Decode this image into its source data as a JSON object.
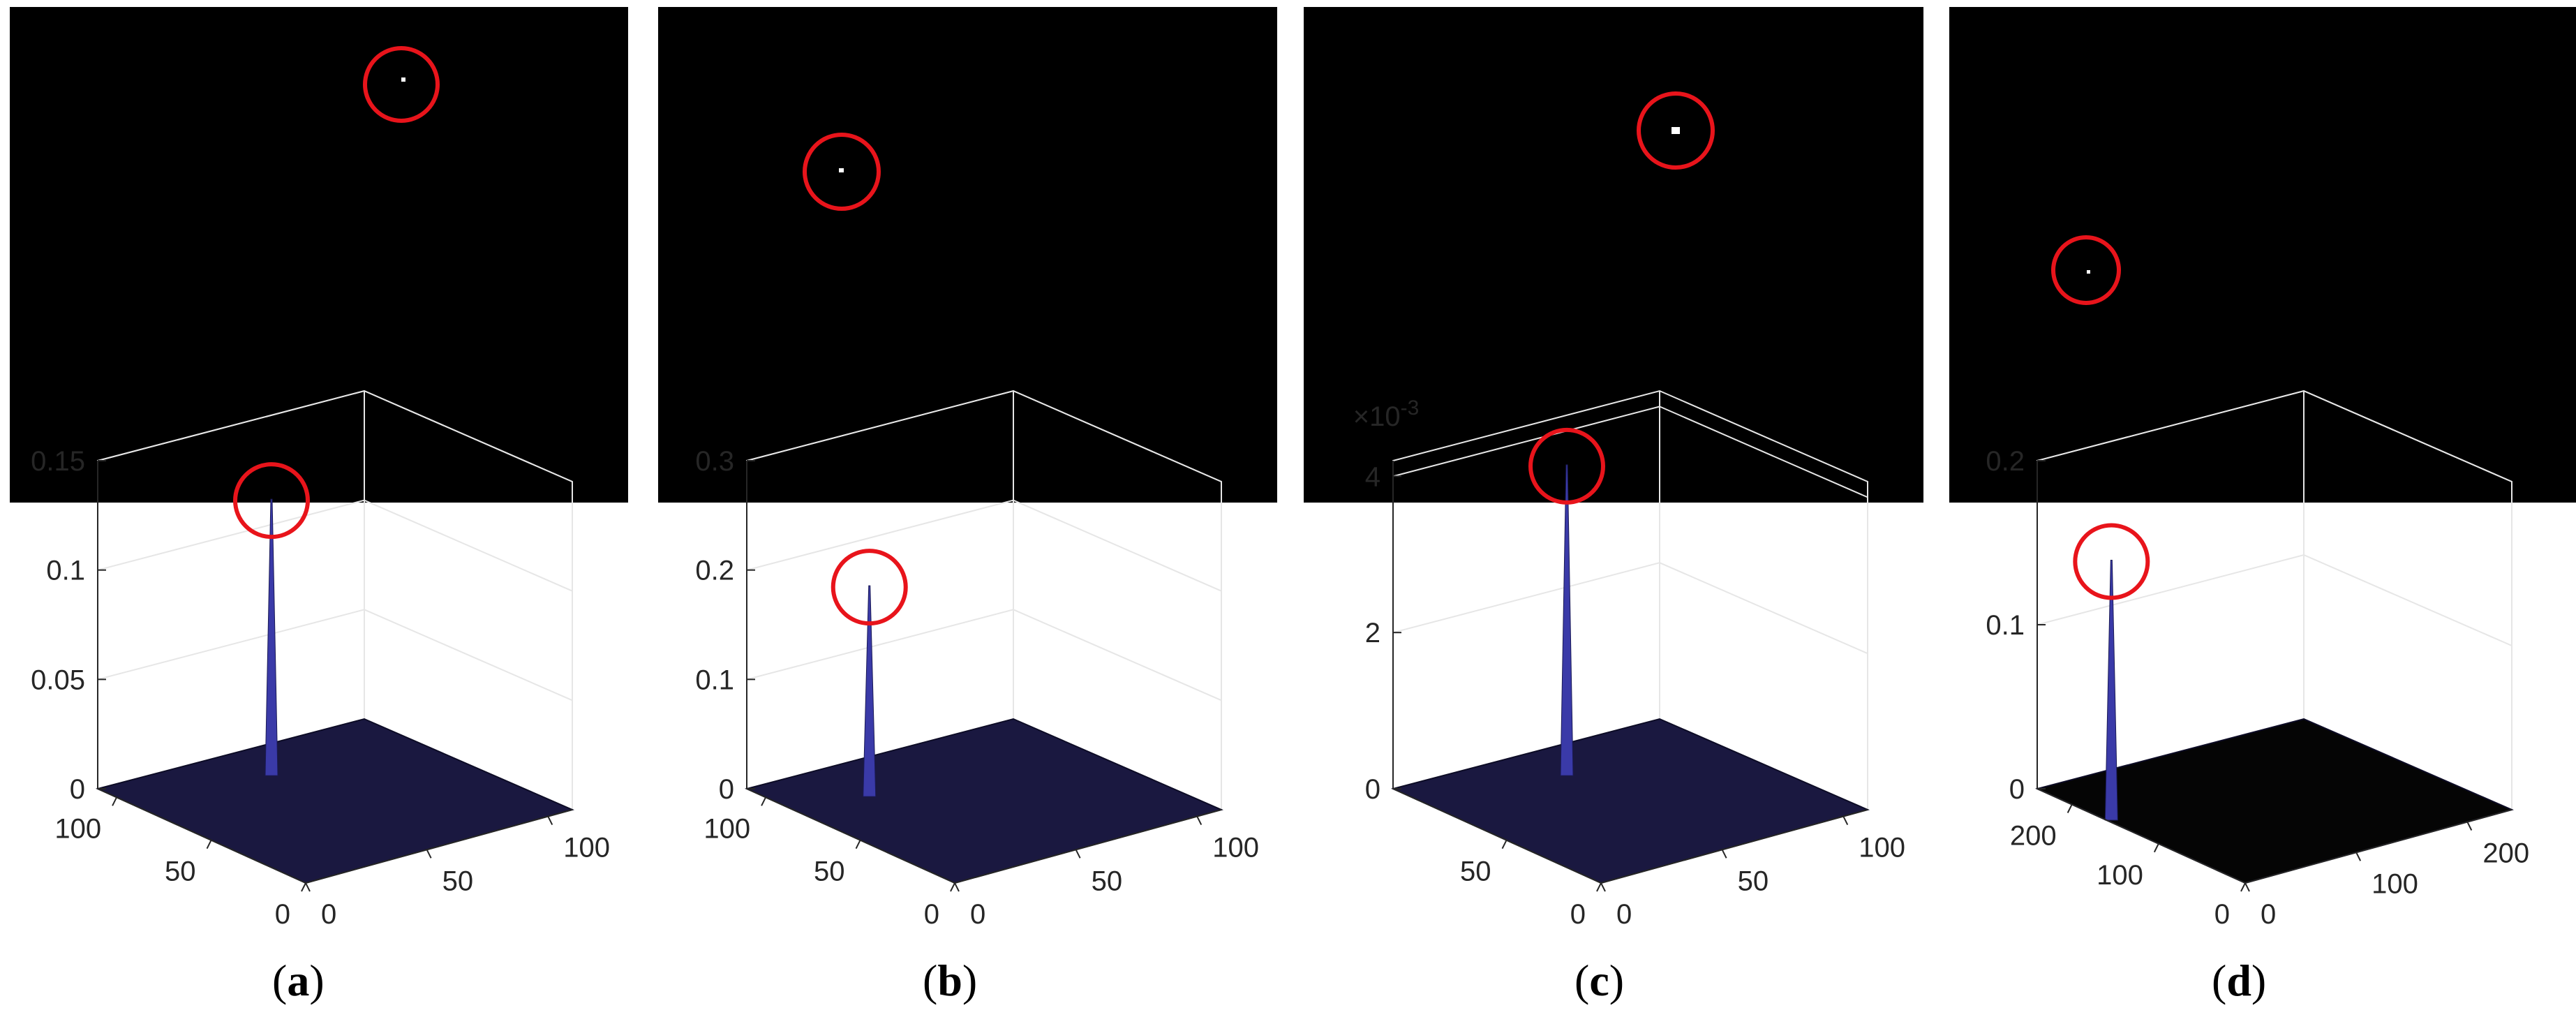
{
  "chart_data": [
    {
      "type": "surface",
      "panel": "a",
      "caption_letter": "a",
      "z_ticks": [
        "0",
        "0.05",
        "0.1",
        "0.15"
      ],
      "z_range": [
        0,
        0.15
      ],
      "peak_value": 0.12,
      "y_ticks": [
        "0",
        "50",
        "100"
      ],
      "x_ticks": [
        "0",
        "50",
        "100"
      ],
      "x_range": [
        0,
        110
      ],
      "y_range": [
        0,
        110
      ],
      "peak_location": [
        60,
        95
      ],
      "exponent_label": ""
    },
    {
      "type": "surface",
      "panel": "b",
      "caption_letter": "b",
      "z_ticks": [
        "0",
        "0.1",
        "0.2",
        "0.3"
      ],
      "z_range": [
        0,
        0.3
      ],
      "peak_value": 0.18,
      "y_ticks": [
        "0",
        "50",
        "100"
      ],
      "x_ticks": [
        "0",
        "50",
        "100"
      ],
      "x_range": [
        0,
        110
      ],
      "y_range": [
        0,
        110
      ],
      "peak_location": [
        35,
        90
      ],
      "exponent_label": ""
    },
    {
      "type": "surface",
      "panel": "c",
      "caption_letter": "c",
      "z_ticks": [
        "0",
        "2",
        "4"
      ],
      "z_range": [
        0,
        4.2
      ],
      "peak_value": 3.8,
      "y_ticks": [
        "0",
        "50"
      ],
      "x_ticks": [
        "0",
        "50",
        "100"
      ],
      "x_range": [
        0,
        110
      ],
      "y_range": [
        0,
        110
      ],
      "peak_location": [
        60,
        95
      ],
      "exponent_label": "×10",
      "exponent_power": "-3"
    },
    {
      "type": "surface",
      "panel": "d",
      "caption_letter": "d",
      "z_ticks": [
        "0",
        "0.1",
        "0.2"
      ],
      "z_range": [
        0,
        0.2
      ],
      "peak_value": 0.15,
      "y_ticks": [
        "0",
        "100",
        "200"
      ],
      "x_ticks": [
        "0",
        "100",
        "200"
      ],
      "x_range": [
        0,
        240
      ],
      "y_range": [
        0,
        240
      ],
      "peak_location": [
        20,
        180
      ],
      "exponent_label": ""
    }
  ],
  "colors": {
    "highlight_ring": "#e8141b",
    "surface_floor": "#1a1840",
    "surface_floor_d": "#050505",
    "peak": "#3a3aa8",
    "axis": "#262626",
    "grid": "#e6e6e6"
  }
}
